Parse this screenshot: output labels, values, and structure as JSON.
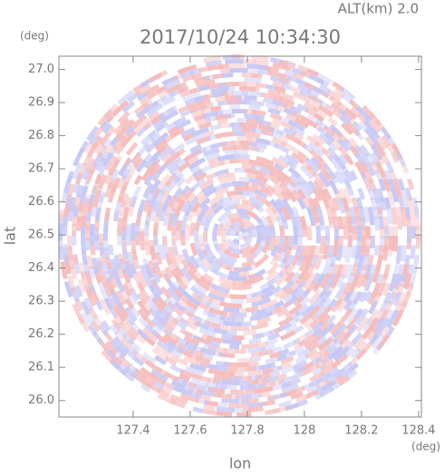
{
  "chart_data": {
    "type": "ppi",
    "title": "2017/10/24 10:34:30",
    "subtitle": "ALT(km)  2.0",
    "x_label": "lon",
    "y_label": "lat",
    "x_unit": "(deg)",
    "y_unit": "(deg)",
    "xlim": [
      127.14,
      128.41
    ],
    "ylim": [
      25.95,
      27.04
    ],
    "xticks": [
      127.4,
      127.6,
      127.8,
      128.0,
      128.2,
      128.4
    ],
    "yticks": [
      {
        "value": 26.0,
        "label": "26.0"
      },
      26.1,
      26.2,
      26.3,
      26.4,
      26.5,
      26.6,
      26.7,
      26.8,
      26.9,
      {
        "value": 27.0,
        "label": "27.0"
      }
    ],
    "colors": [
      "#f5bcbc",
      "#c6c8f4"
    ]
  }
}
